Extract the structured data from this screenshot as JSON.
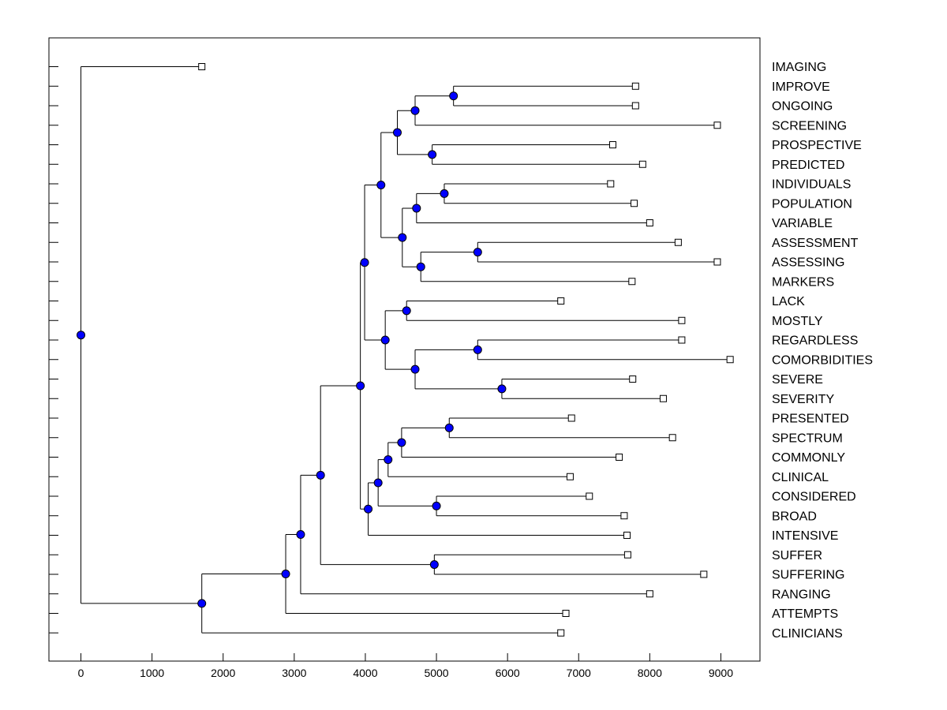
{
  "chart_data": {
    "type": "dendrogram",
    "orientation": "horizontal",
    "xlim": [
      -450,
      9550
    ],
    "xticks": [
      0,
      1000,
      2000,
      3000,
      4000,
      5000,
      6000,
      7000,
      8000,
      9000
    ],
    "xtick_labels": [
      "0",
      "1000",
      "2000",
      "3000",
      "4000",
      "5000",
      "6000",
      "7000",
      "8000",
      "9000"
    ],
    "grid": false,
    "node_color": "#0000ff",
    "leaves": [
      {
        "label": "IMAGING",
        "x": 1700
      },
      {
        "label": "IMPROVE",
        "x": 7800
      },
      {
        "label": "ONGOING",
        "x": 7800
      },
      {
        "label": "SCREENING",
        "x": 8950
      },
      {
        "label": "PROSPECTIVE",
        "x": 7480
      },
      {
        "label": "PREDICTED",
        "x": 7900
      },
      {
        "label": "INDIVIDUALS",
        "x": 7450
      },
      {
        "label": "POPULATION",
        "x": 7780
      },
      {
        "label": "VARIABLE",
        "x": 8000
      },
      {
        "label": "ASSESSMENT",
        "x": 8400
      },
      {
        "label": "ASSESSING",
        "x": 8950
      },
      {
        "label": "MARKERS",
        "x": 7750
      },
      {
        "label": "LACK",
        "x": 6750
      },
      {
        "label": "MOSTLY",
        "x": 8450
      },
      {
        "label": "REGARDLESS",
        "x": 8450
      },
      {
        "label": "COMORBIDITIES",
        "x": 9130
      },
      {
        "label": "SEVERE",
        "x": 7760
      },
      {
        "label": "SEVERITY",
        "x": 8190
      },
      {
        "label": "PRESENTED",
        "x": 6900
      },
      {
        "label": "SPECTRUM",
        "x": 8320
      },
      {
        "label": "COMMONLY",
        "x": 7570
      },
      {
        "label": "CLINICAL",
        "x": 6880
      },
      {
        "label": "CONSIDERED",
        "x": 7150
      },
      {
        "label": "BROAD",
        "x": 7640
      },
      {
        "label": "INTENSIVE",
        "x": 7680
      },
      {
        "label": "SUFFER",
        "x": 7690
      },
      {
        "label": "SUFFERING",
        "x": 8760
      },
      {
        "label": "RANGING",
        "x": 8000
      },
      {
        "label": "ATTEMPTS",
        "x": 6820
      },
      {
        "label": "CLINICIANS",
        "x": 6750
      }
    ],
    "merges": [
      {
        "id": "m1",
        "x": 5240,
        "children": [
          "IMPROVE",
          "ONGOING"
        ]
      },
      {
        "id": "m2",
        "x": 4700,
        "children": [
          "m1",
          "SCREENING"
        ]
      },
      {
        "id": "m3",
        "x": 4940,
        "children": [
          "PROSPECTIVE",
          "PREDICTED"
        ]
      },
      {
        "id": "m4",
        "x": 4450,
        "children": [
          "m2",
          "m3"
        ]
      },
      {
        "id": "m5",
        "x": 5110,
        "children": [
          "INDIVIDUALS",
          "POPULATION"
        ]
      },
      {
        "id": "m6",
        "x": 4720,
        "children": [
          "m5",
          "VARIABLE"
        ]
      },
      {
        "id": "m7",
        "x": 5580,
        "children": [
          "ASSESSMENT",
          "ASSESSING"
        ]
      },
      {
        "id": "m8",
        "x": 4780,
        "children": [
          "m7",
          "MARKERS"
        ]
      },
      {
        "id": "m9",
        "x": 4520,
        "children": [
          "m6",
          "m8"
        ]
      },
      {
        "id": "m10",
        "x": 4220,
        "children": [
          "m4",
          "m9"
        ]
      },
      {
        "id": "m11",
        "x": 4580,
        "children": [
          "LACK",
          "MOSTLY"
        ]
      },
      {
        "id": "m12",
        "x": 5580,
        "children": [
          "REGARDLESS",
          "COMORBIDITIES"
        ]
      },
      {
        "id": "m13",
        "x": 5920,
        "children": [
          "SEVERE",
          "SEVERITY"
        ]
      },
      {
        "id": "m14",
        "x": 4700,
        "children": [
          "m12",
          "m13"
        ]
      },
      {
        "id": "m15",
        "x": 4280,
        "children": [
          "m11",
          "m14"
        ]
      },
      {
        "id": "m16",
        "x": 3990,
        "children": [
          "m10",
          "m15"
        ]
      },
      {
        "id": "m17",
        "x": 5180,
        "children": [
          "PRESENTED",
          "SPECTRUM"
        ]
      },
      {
        "id": "m18",
        "x": 4510,
        "children": [
          "m17",
          "COMMONLY"
        ]
      },
      {
        "id": "m19",
        "x": 4320,
        "children": [
          "m18",
          "CLINICAL"
        ]
      },
      {
        "id": "m20",
        "x": 5000,
        "children": [
          "CONSIDERED",
          "BROAD"
        ]
      },
      {
        "id": "m21",
        "x": 4180,
        "children": [
          "m19",
          "m20"
        ]
      },
      {
        "id": "m22",
        "x": 4040,
        "children": [
          "m21",
          "INTENSIVE"
        ]
      },
      {
        "id": "m23",
        "x": 3930,
        "children": [
          "m16",
          "m22"
        ]
      },
      {
        "id": "m24",
        "x": 4970,
        "children": [
          "SUFFER",
          "SUFFERING"
        ]
      },
      {
        "id": "m25",
        "x": 3370,
        "children": [
          "m23",
          "m24"
        ]
      },
      {
        "id": "m26",
        "x": 3090,
        "children": [
          "m25",
          "RANGING"
        ]
      },
      {
        "id": "m27",
        "x": 2880,
        "children": [
          "m26",
          "ATTEMPTS"
        ]
      },
      {
        "id": "m28",
        "x": 1700,
        "children": [
          "m27",
          "CLINICIANS"
        ]
      },
      {
        "id": "m29",
        "x": 0,
        "children": [
          "IMAGING",
          "m28"
        ]
      }
    ]
  }
}
